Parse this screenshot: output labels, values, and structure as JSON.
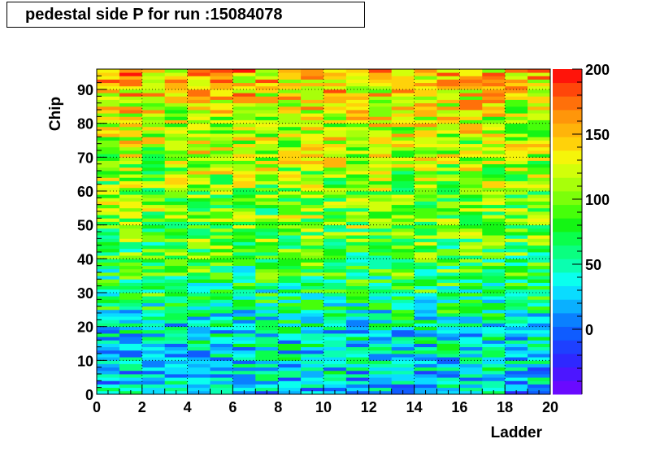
{
  "chart_data": {
    "type": "heatmap",
    "title": "pedestal side P for run :15084078",
    "xlabel": "Ladder",
    "ylabel": "Chip",
    "xlim": [
      0,
      20
    ],
    "ylim": [
      0,
      96
    ],
    "x_ticks": [
      0,
      2,
      4,
      6,
      8,
      10,
      12,
      14,
      16,
      18,
      20
    ],
    "y_ticks": [
      0,
      10,
      20,
      30,
      40,
      50,
      60,
      70,
      80,
      90
    ],
    "colorbar": {
      "range": [
        -50,
        200
      ],
      "ticks": [
        0,
        50,
        100,
        150,
        200
      ],
      "colors": [
        "#6a0aff",
        "#4c16ff",
        "#2e28ff",
        "#1e40ff",
        "#0f5cff",
        "#0a80ff",
        "#0ab0ff",
        "#0adcff",
        "#0affee",
        "#0affb0",
        "#0aff80",
        "#0aff4c",
        "#14f514",
        "#46ff0a",
        "#7cff0a",
        "#a8ff0a",
        "#d2ff0a",
        "#f5f50a",
        "#ffd20a",
        "#ffb40a",
        "#ff960a",
        "#ff700a",
        "#ff460a",
        "#ff140a"
      ]
    },
    "grid": true,
    "ladders": 20,
    "chips": 96,
    "row_profile": [
      [
        0,
        25
      ],
      [
        8,
        35
      ],
      [
        20,
        40
      ],
      [
        30,
        65
      ],
      [
        40,
        80
      ],
      [
        50,
        95
      ],
      [
        60,
        100
      ],
      [
        70,
        115
      ],
      [
        80,
        120
      ],
      [
        90,
        140
      ],
      [
        96,
        150
      ]
    ]
  }
}
